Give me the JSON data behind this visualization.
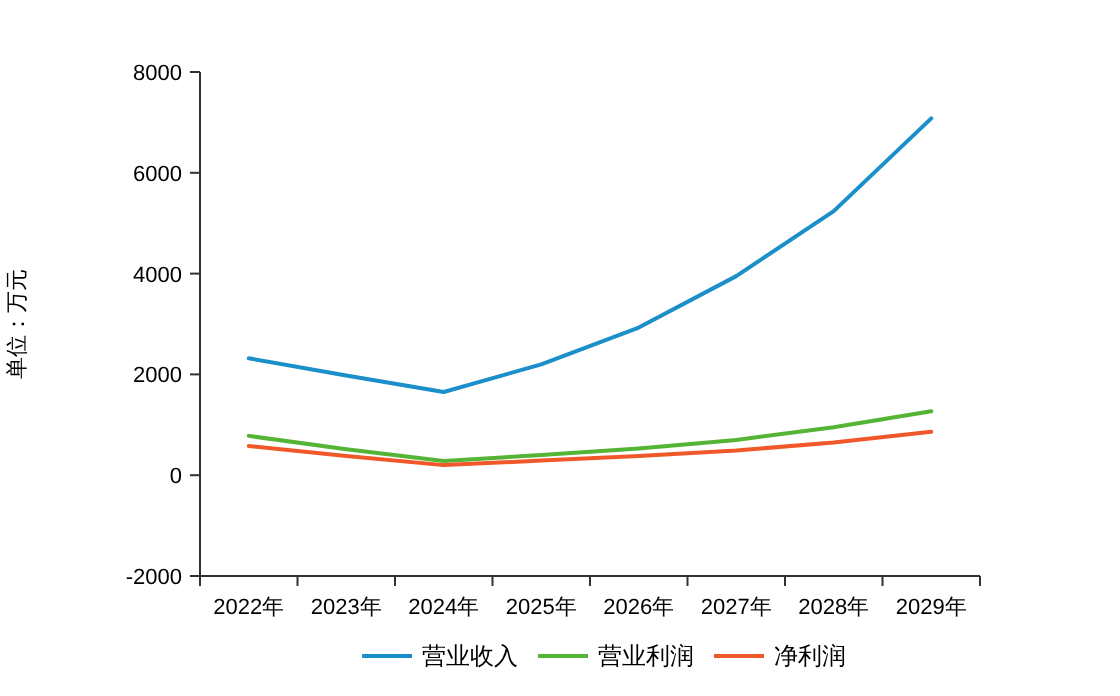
{
  "chart_data": {
    "type": "line",
    "ylabel": "单位：万元",
    "categories": [
      "2022年",
      "2023年",
      "2024年",
      "2025年",
      "2026年",
      "2027年",
      "2028年",
      "2029年"
    ],
    "series": [
      {
        "name": "营业收入",
        "color": "#1b8fc9",
        "values": [
          2320,
          1980,
          1650,
          2200,
          2930,
          3950,
          5240,
          7080
        ]
      },
      {
        "name": "营业利润",
        "color": "#54b435",
        "values": [
          780,
          515,
          280,
          400,
          530,
          700,
          950,
          1270
        ]
      },
      {
        "name": "净利润",
        "color": "#f0582a",
        "values": [
          580,
          380,
          200,
          290,
          380,
          490,
          650,
          860
        ]
      }
    ],
    "ylim": [
      -2000,
      8000
    ],
    "yticks": [
      -2000,
      0,
      2000,
      4000,
      6000,
      8000
    ],
    "grid": false,
    "legend": "bottom",
    "marker": "none",
    "line_style": "solid"
  }
}
